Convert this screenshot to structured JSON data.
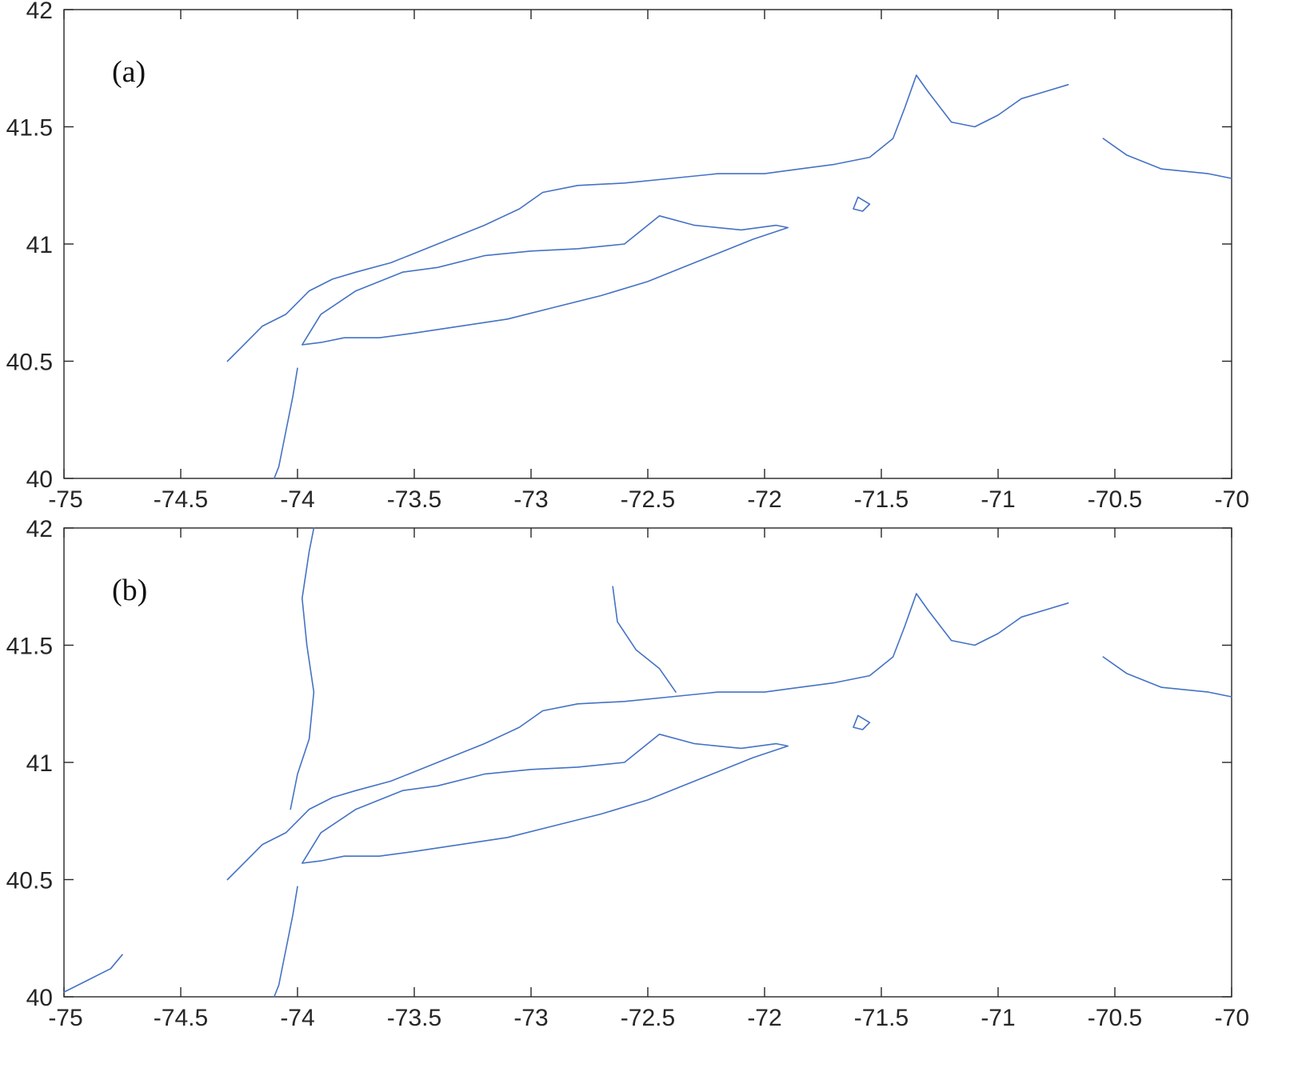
{
  "figure": {
    "panels": [
      {
        "label": "(a)",
        "xlim": [
          -75,
          -70
        ],
        "ylim": [
          40,
          42
        ]
      },
      {
        "label": "(b)",
        "xlim": [
          -75,
          -70
        ],
        "ylim": [
          40,
          42
        ]
      }
    ],
    "x_ticks": [
      -75,
      -74.5,
      -74,
      -73.5,
      -73,
      -72.5,
      -72,
      -71.5,
      -71,
      -70.5,
      -70
    ],
    "x_tick_labels": [
      "-75",
      "-74.5",
      "-74",
      "-73.5",
      "-73",
      "-72.5",
      "-72",
      "-71.5",
      "-71",
      "-70.5",
      "-70"
    ],
    "y_ticks": [
      40,
      40.5,
      41,
      41.5,
      42
    ],
    "y_tick_labels": [
      "40",
      "40.5",
      "41",
      "41.5",
      "42"
    ],
    "colors": {
      "coastline": "#4472c4",
      "axes": "#262626"
    }
  },
  "chart_data": [
    {
      "type": "map",
      "title": "",
      "label": "(a)",
      "xlabel": "",
      "ylabel": "",
      "xlim": [
        -75,
        -70
      ],
      "ylim": [
        40,
        42
      ],
      "grid": false,
      "series": [
        {
          "kind": "coastline",
          "points": [
            [
              -74.3,
              40.5
            ],
            [
              -74.25,
              40.55
            ],
            [
              -74.15,
              40.65
            ],
            [
              -74.05,
              40.7
            ],
            [
              -74.0,
              40.75
            ],
            [
              -73.95,
              40.8
            ],
            [
              -73.85,
              40.85
            ],
            [
              -73.75,
              40.88
            ],
            [
              -73.6,
              40.92
            ],
            [
              -73.5,
              40.96
            ],
            [
              -73.4,
              41.0
            ],
            [
              -73.2,
              41.08
            ],
            [
              -73.05,
              41.15
            ],
            [
              -72.95,
              41.22
            ],
            [
              -72.8,
              41.25
            ],
            [
              -72.6,
              41.26
            ],
            [
              -72.4,
              41.28
            ],
            [
              -72.2,
              41.3
            ],
            [
              -72.0,
              41.3
            ],
            [
              -71.85,
              41.32
            ],
            [
              -71.7,
              41.34
            ],
            [
              -71.55,
              41.37
            ],
            [
              -71.45,
              41.45
            ],
            [
              -71.4,
              41.58
            ],
            [
              -71.35,
              41.72
            ],
            [
              -71.3,
              41.65
            ],
            [
              -71.2,
              41.52
            ],
            [
              -71.1,
              41.5
            ],
            [
              -71.0,
              41.55
            ],
            [
              -70.9,
              41.62
            ],
            [
              -70.8,
              41.65
            ],
            [
              -70.7,
              41.68
            ]
          ]
        },
        {
          "kind": "coastline",
          "points": [
            [
              -73.98,
              40.57
            ],
            [
              -73.9,
              40.58
            ],
            [
              -73.8,
              40.6
            ],
            [
              -73.65,
              40.6
            ],
            [
              -73.5,
              40.62
            ],
            [
              -73.3,
              40.65
            ],
            [
              -73.1,
              40.68
            ],
            [
              -72.9,
              40.73
            ],
            [
              -72.7,
              40.78
            ],
            [
              -72.5,
              40.84
            ],
            [
              -72.35,
              40.9
            ],
            [
              -72.2,
              40.96
            ],
            [
              -72.05,
              41.02
            ],
            [
              -71.9,
              41.07
            ],
            [
              -71.95,
              41.08
            ],
            [
              -72.1,
              41.06
            ],
            [
              -72.3,
              41.08
            ],
            [
              -72.45,
              41.12
            ],
            [
              -72.6,
              41.0
            ],
            [
              -72.8,
              40.98
            ],
            [
              -73.0,
              40.97
            ],
            [
              -73.2,
              40.95
            ],
            [
              -73.4,
              40.9
            ],
            [
              -73.55,
              40.88
            ],
            [
              -73.75,
              40.8
            ],
            [
              -73.9,
              40.7
            ],
            [
              -73.98,
              40.57
            ]
          ]
        },
        {
          "kind": "coastline",
          "points": [
            [
              -74.0,
              40.47
            ],
            [
              -74.02,
              40.35
            ],
            [
              -74.05,
              40.2
            ],
            [
              -74.08,
              40.05
            ],
            [
              -74.1,
              40.0
            ]
          ]
        },
        {
          "kind": "coastline",
          "points": [
            [
              -70.55,
              41.45
            ],
            [
              -70.45,
              41.38
            ],
            [
              -70.3,
              41.32
            ],
            [
              -70.1,
              41.3
            ],
            [
              -70.0,
              41.28
            ]
          ]
        },
        {
          "kind": "coastline",
          "points": [
            [
              -71.6,
              41.2
            ],
            [
              -71.55,
              41.17
            ],
            [
              -71.58,
              41.14
            ],
            [
              -71.62,
              41.15
            ],
            [
              -71.6,
              41.2
            ]
          ]
        }
      ]
    },
    {
      "type": "map",
      "title": "",
      "label": "(b)",
      "xlabel": "",
      "ylabel": "",
      "xlim": [
        -75,
        -70
      ],
      "ylim": [
        40,
        42
      ],
      "grid": false,
      "series": [
        {
          "kind": "coastline",
          "points": [
            [
              -74.3,
              40.5
            ],
            [
              -74.25,
              40.55
            ],
            [
              -74.15,
              40.65
            ],
            [
              -74.05,
              40.7
            ],
            [
              -74.0,
              40.75
            ],
            [
              -73.95,
              40.8
            ],
            [
              -73.85,
              40.85
            ],
            [
              -73.75,
              40.88
            ],
            [
              -73.6,
              40.92
            ],
            [
              -73.5,
              40.96
            ],
            [
              -73.4,
              41.0
            ],
            [
              -73.2,
              41.08
            ],
            [
              -73.05,
              41.15
            ],
            [
              -72.95,
              41.22
            ],
            [
              -72.8,
              41.25
            ],
            [
              -72.6,
              41.26
            ],
            [
              -72.4,
              41.28
            ],
            [
              -72.2,
              41.3
            ],
            [
              -72.0,
              41.3
            ],
            [
              -71.85,
              41.32
            ],
            [
              -71.7,
              41.34
            ],
            [
              -71.55,
              41.37
            ],
            [
              -71.45,
              41.45
            ],
            [
              -71.4,
              41.58
            ],
            [
              -71.35,
              41.72
            ],
            [
              -71.3,
              41.65
            ],
            [
              -71.2,
              41.52
            ],
            [
              -71.1,
              41.5
            ],
            [
              -71.0,
              41.55
            ],
            [
              -70.9,
              41.62
            ],
            [
              -70.8,
              41.65
            ],
            [
              -70.7,
              41.68
            ]
          ]
        },
        {
          "kind": "coastline",
          "points": [
            [
              -73.98,
              40.57
            ],
            [
              -73.9,
              40.58
            ],
            [
              -73.8,
              40.6
            ],
            [
              -73.65,
              40.6
            ],
            [
              -73.5,
              40.62
            ],
            [
              -73.3,
              40.65
            ],
            [
              -73.1,
              40.68
            ],
            [
              -72.9,
              40.73
            ],
            [
              -72.7,
              40.78
            ],
            [
              -72.5,
              40.84
            ],
            [
              -72.35,
              40.9
            ],
            [
              -72.2,
              40.96
            ],
            [
              -72.05,
              41.02
            ],
            [
              -71.9,
              41.07
            ],
            [
              -71.95,
              41.08
            ],
            [
              -72.1,
              41.06
            ],
            [
              -72.3,
              41.08
            ],
            [
              -72.45,
              41.12
            ],
            [
              -72.6,
              41.0
            ],
            [
              -72.8,
              40.98
            ],
            [
              -73.0,
              40.97
            ],
            [
              -73.2,
              40.95
            ],
            [
              -73.4,
              40.9
            ],
            [
              -73.55,
              40.88
            ],
            [
              -73.75,
              40.8
            ],
            [
              -73.9,
              40.7
            ],
            [
              -73.98,
              40.57
            ]
          ]
        },
        {
          "kind": "coastline",
          "points": [
            [
              -74.0,
              40.47
            ],
            [
              -74.02,
              40.35
            ],
            [
              -74.05,
              40.2
            ],
            [
              -74.08,
              40.05
            ],
            [
              -74.1,
              40.0
            ]
          ]
        },
        {
          "kind": "river",
          "points": [
            [
              -74.03,
              40.8
            ],
            [
              -74.0,
              40.95
            ],
            [
              -73.95,
              41.1
            ],
            [
              -73.93,
              41.3
            ],
            [
              -73.96,
              41.5
            ],
            [
              -73.98,
              41.7
            ],
            [
              -73.95,
              41.9
            ],
            [
              -73.93,
              42.0
            ]
          ]
        },
        {
          "kind": "river",
          "points": [
            [
              -72.65,
              41.75
            ],
            [
              -72.63,
              41.6
            ],
            [
              -72.55,
              41.48
            ],
            [
              -72.45,
              41.4
            ],
            [
              -72.38,
              41.3
            ]
          ]
        },
        {
          "kind": "coastline",
          "points": [
            [
              -75.0,
              40.02
            ],
            [
              -74.9,
              40.07
            ],
            [
              -74.8,
              40.12
            ],
            [
              -74.75,
              40.18
            ]
          ]
        },
        {
          "kind": "coastline",
          "points": [
            [
              -70.55,
              41.45
            ],
            [
              -70.45,
              41.38
            ],
            [
              -70.3,
              41.32
            ],
            [
              -70.1,
              41.3
            ],
            [
              -70.0,
              41.28
            ]
          ]
        },
        {
          "kind": "coastline",
          "points": [
            [
              -71.6,
              41.2
            ],
            [
              -71.55,
              41.17
            ],
            [
              -71.58,
              41.14
            ],
            [
              -71.62,
              41.15
            ],
            [
              -71.6,
              41.2
            ]
          ]
        }
      ]
    }
  ]
}
